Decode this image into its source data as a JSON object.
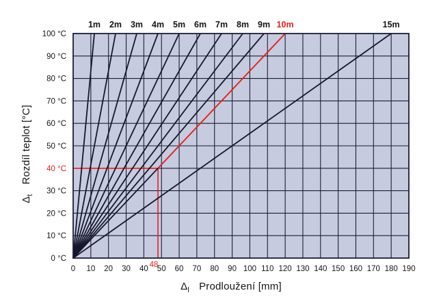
{
  "chart_data": {
    "type": "line",
    "title": "",
    "xlabel": {
      "delta": "Δ",
      "sub": "l",
      "text": "Prodloužení [mm]"
    },
    "ylabel": {
      "delta": "Δ",
      "sub": "t",
      "text": "Rozdíl teplot [°C]"
    },
    "xlim": [
      0,
      190
    ],
    "ylim": [
      0,
      100
    ],
    "grid": true,
    "legend_position": "top-outside",
    "x_ticks": [
      0,
      10,
      20,
      30,
      40,
      50,
      60,
      70,
      80,
      90,
      100,
      110,
      120,
      130,
      140,
      150,
      160,
      170,
      180,
      190
    ],
    "y_ticks": [
      {
        "v": 0,
        "label": "0 °C"
      },
      {
        "v": 10,
        "label": "10 °C"
      },
      {
        "v": 20,
        "label": "20 °C"
      },
      {
        "v": 30,
        "label": "30 °C"
      },
      {
        "v": 40,
        "label": "40 °C"
      },
      {
        "v": 50,
        "label": "50 °C"
      },
      {
        "v": 60,
        "label": "60 °C"
      },
      {
        "v": 70,
        "label": "70 °C"
      },
      {
        "v": 80,
        "label": "80 °C"
      },
      {
        "v": 90,
        "label": "90 °C"
      },
      {
        "v": 100,
        "label": "100 °C"
      }
    ],
    "series": [
      {
        "name": "1m",
        "points": [
          [
            0,
            0
          ],
          [
            12,
            100
          ]
        ]
      },
      {
        "name": "2m",
        "points": [
          [
            0,
            0
          ],
          [
            24,
            100
          ]
        ]
      },
      {
        "name": "3m",
        "points": [
          [
            0,
            0
          ],
          [
            36,
            100
          ]
        ]
      },
      {
        "name": "4m",
        "points": [
          [
            0,
            0
          ],
          [
            48,
            100
          ]
        ]
      },
      {
        "name": "5m",
        "points": [
          [
            0,
            0
          ],
          [
            60,
            100
          ]
        ]
      },
      {
        "name": "6m",
        "points": [
          [
            0,
            0
          ],
          [
            72,
            100
          ]
        ]
      },
      {
        "name": "7m",
        "points": [
          [
            0,
            0
          ],
          [
            84,
            100
          ]
        ]
      },
      {
        "name": "8m",
        "points": [
          [
            0,
            0
          ],
          [
            96,
            100
          ]
        ]
      },
      {
        "name": "9m",
        "points": [
          [
            0,
            0
          ],
          [
            108,
            100
          ]
        ]
      },
      {
        "name": "10m",
        "points": [
          [
            0,
            0
          ],
          [
            120,
            100
          ]
        ]
      },
      {
        "name": "15m",
        "points": [
          [
            0,
            0
          ],
          [
            180,
            100
          ]
        ]
      }
    ],
    "annotation": {
      "series": "10m",
      "x": 48,
      "y": 40,
      "x_label": "48",
      "y_label": "40 °C"
    },
    "colors": {
      "background": "#ffffff",
      "plot_bg": "#c6cbdf",
      "grid": "#1c1d33",
      "line": "#16172d",
      "highlight": "#e0231f",
      "text": "#141414"
    }
  }
}
